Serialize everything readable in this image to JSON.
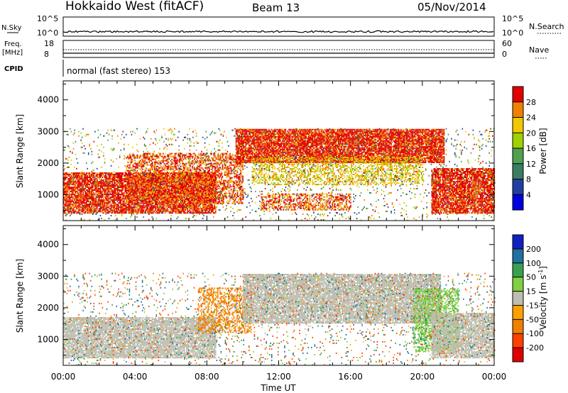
{
  "header": {
    "station": "Hokkaido West (fitACF)",
    "beam": "Beam 13",
    "date": "05/Nov/2014"
  },
  "top_panel": {
    "nsky_label": "N.Sky",
    "nsky_ticks": [
      "10^5",
      "10^0"
    ],
    "nsearch_label": "N.Search",
    "freq_label_1": "Freq.",
    "freq_label_2": "[MHz]",
    "freq_ticks": [
      "18",
      "8"
    ],
    "nave_label": "Nave",
    "nave_ticks": [
      "60",
      "0"
    ],
    "cpid_label": "CPID",
    "cpid_text": "normal (fast stereo) 153"
  },
  "colors": {
    "power_scale": [
      "#0000e0",
      "#2040a0",
      "#3a7d60",
      "#4fa050",
      "#9fd000",
      "#f0c800",
      "#f08000",
      "#e00000"
    ],
    "velocity_scale": [
      "#e00000",
      "#ff4000",
      "#f08000",
      "#ffa000",
      "#bdbdb0",
      "#80d040",
      "#3aa050",
      "#2070a0",
      "#1020c0"
    ],
    "ground_scatter": "#bdbdb0"
  },
  "chart_data": [
    {
      "type": "heatmap",
      "name": "power",
      "ylabel": "Slant Range [km]",
      "ylim": [
        180,
        4600
      ],
      "yticks": [
        1000,
        2000,
        3000,
        4000
      ],
      "xlim": [
        0,
        24
      ],
      "colorbar": {
        "label": "Power [dB]",
        "range": [
          0,
          32
        ],
        "ticks": [
          4,
          8,
          12,
          16,
          20,
          24,
          28
        ]
      },
      "echo_regions": [
        {
          "t0": 0,
          "t1": 8.5,
          "r0": 400,
          "r1": 1700,
          "value": 30,
          "density": 0.85
        },
        {
          "t0": 3.5,
          "t1": 10,
          "r0": 700,
          "r1": 2300,
          "value": 28,
          "density": 0.55
        },
        {
          "t0": 9.6,
          "t1": 21.2,
          "r0": 2000,
          "r1": 3050,
          "value": 30,
          "density": 0.9
        },
        {
          "t0": 10.5,
          "t1": 20,
          "r0": 1300,
          "r1": 2200,
          "value": 22,
          "density": 0.45
        },
        {
          "t0": 11,
          "t1": 16,
          "r0": 500,
          "r1": 1000,
          "value": 28,
          "density": 0.5
        },
        {
          "t0": 20.5,
          "t1": 24,
          "r0": 400,
          "r1": 1800,
          "value": 30,
          "density": 0.85
        },
        {
          "t0": 0,
          "t1": 24,
          "r0": 180,
          "r1": 3100,
          "value": 18,
          "density": 0.07
        }
      ]
    },
    {
      "type": "heatmap",
      "name": "velocity",
      "ylabel": "Slant Range [km]",
      "xlabel": "Time UT",
      "xticks": [
        "00:00",
        "04:00",
        "08:00",
        "12:00",
        "16:00",
        "20:00",
        "00:00"
      ],
      "ylim": [
        180,
        4600
      ],
      "yticks": [
        1000,
        2000,
        3000,
        4000
      ],
      "xlim": [
        0,
        24
      ],
      "colorbar": {
        "label": "Velocity [m s^-1]",
        "ticks": [
          "200",
          "100",
          "50",
          "15",
          "-15",
          "-50",
          "-100",
          "-200"
        ]
      },
      "echo_regions": [
        {
          "t0": 0,
          "t1": 8.5,
          "r0": 400,
          "r1": 1700,
          "value": 0,
          "density": 0.85
        },
        {
          "t0": 7.5,
          "t1": 10.5,
          "r0": 1200,
          "r1": 2600,
          "value": -60,
          "density": 0.45
        },
        {
          "t0": 10,
          "t1": 21,
          "r0": 1500,
          "r1": 3050,
          "value": 0,
          "density": 0.85
        },
        {
          "t0": 19.5,
          "t1": 22,
          "r0": 600,
          "r1": 2600,
          "value": 40,
          "density": 0.55
        },
        {
          "t0": 20.5,
          "t1": 24,
          "r0": 400,
          "r1": 1800,
          "value": 0,
          "density": 0.8
        },
        {
          "t0": 0,
          "t1": 24,
          "r0": 180,
          "r1": 3100,
          "value": 0,
          "density": 0.07
        }
      ]
    }
  ]
}
